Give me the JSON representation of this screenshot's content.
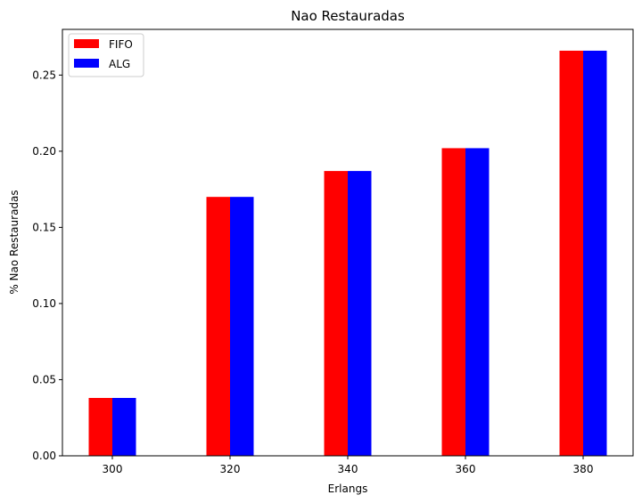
{
  "chart_data": {
    "type": "bar",
    "title": "Nao Restauradas",
    "xlabel": "Erlangs",
    "ylabel": "% Nao Restauradas",
    "categories": [
      "300",
      "320",
      "340",
      "360",
      "380"
    ],
    "series": [
      {
        "name": "FIFO",
        "color": "#ff0000",
        "values": [
          0.038,
          0.17,
          0.187,
          0.202,
          0.266
        ]
      },
      {
        "name": "ALG",
        "color": "#0000ff",
        "values": [
          0.038,
          0.17,
          0.187,
          0.202,
          0.266
        ]
      }
    ],
    "ylim": [
      0,
      0.28
    ],
    "yticks": [
      0.0,
      0.05,
      0.1,
      0.15,
      0.2,
      0.25
    ],
    "ytick_labels": [
      "0.00",
      "0.05",
      "0.10",
      "0.15",
      "0.20",
      "0.25"
    ],
    "grid": false,
    "legend_position": "top-left"
  }
}
